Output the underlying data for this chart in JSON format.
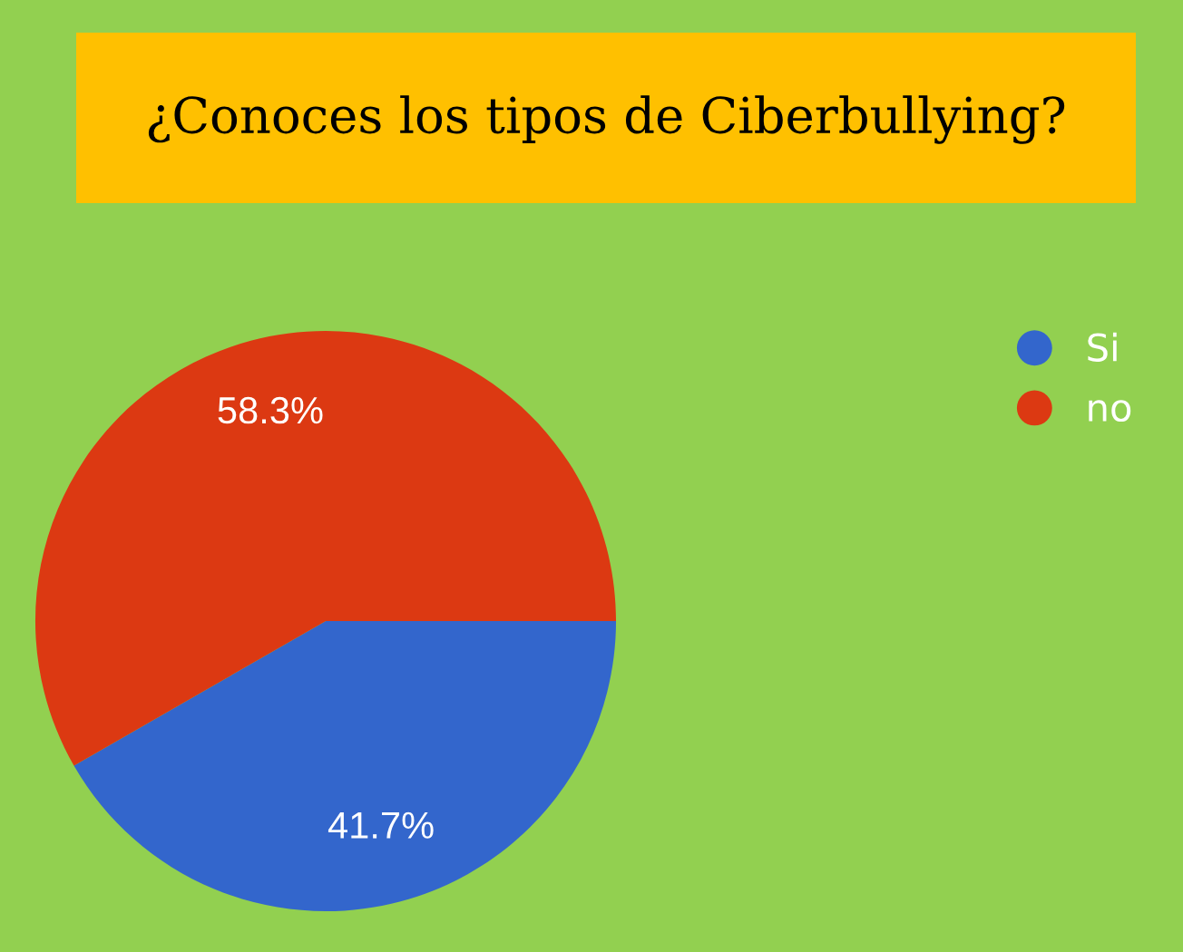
{
  "chart_data": {
    "type": "pie",
    "title": "¿Conoces los tipos de Ciberbullying?",
    "categories": [
      "Si",
      "no"
    ],
    "values": [
      41.7,
      58.3
    ],
    "colors": [
      "#3366cc",
      "#dc3912"
    ],
    "value_labels": [
      "41.7%",
      "58.3%"
    ],
    "legend": "top right"
  }
}
